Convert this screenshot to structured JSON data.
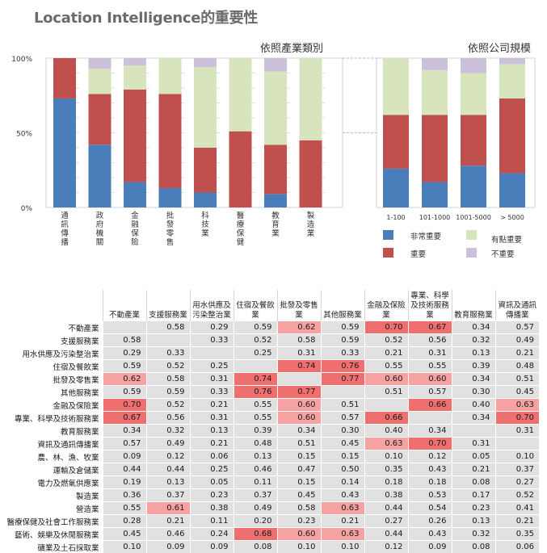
{
  "title": "Location Intelligence的重要性",
  "chart_data": [
    {
      "type": "bar",
      "stacked": true,
      "title": "依照產業類別",
      "categories": [
        "通訊傳播",
        "政府機關",
        "金融保險",
        "批發零售",
        "科技業",
        "醫療保健",
        "教育業",
        "製造業"
      ],
      "yticks": [
        "0%",
        "50%",
        "100%"
      ],
      "ylim": [
        0,
        100
      ],
      "series": [
        {
          "name": "非常重要",
          "color": "#4a7ebb",
          "values": [
            73,
            42,
            17,
            13,
            10,
            0,
            9,
            0
          ]
        },
        {
          "name": "重要",
          "color": "#c0504d",
          "values": [
            27,
            34,
            62,
            63,
            30,
            51,
            33,
            45
          ]
        },
        {
          "name": "有點重要",
          "color": "#d7e4bd",
          "values": [
            0,
            17,
            16,
            24,
            54,
            49,
            49,
            55
          ]
        },
        {
          "name": "不重要",
          "color": "#ccc1da",
          "values": [
            0,
            7,
            5,
            0,
            6,
            0,
            9,
            0
          ]
        }
      ]
    },
    {
      "type": "bar",
      "stacked": true,
      "title": "依照公司規模",
      "categories": [
        "1-100",
        "101-1000",
        "1001-5000",
        "> 5000"
      ],
      "ylim": [
        0,
        100
      ],
      "series": [
        {
          "name": "非常重要",
          "color": "#4a7ebb",
          "values": [
            26,
            17,
            28,
            23
          ]
        },
        {
          "name": "重要",
          "color": "#c0504d",
          "values": [
            36,
            45,
            34,
            50
          ]
        },
        {
          "name": "有點重要",
          "color": "#d7e4bd",
          "values": [
            38,
            30,
            28,
            23
          ]
        },
        {
          "name": "不重要",
          "color": "#ccc1da",
          "values": [
            0,
            8,
            10,
            4
          ]
        }
      ]
    },
    {
      "type": "heatmap",
      "columns": [
        "不動產業",
        "支援服務業",
        "用水供應及污染整治業",
        "住宿及餐飲業",
        "批發及零售業",
        "其他服務業",
        "金融及保險業",
        "專業、科學及技術服務業",
        "教育服務業",
        "資訊及通訊傳播業"
      ],
      "rows": [
        {
          "label": "不動產業",
          "values": [
            null,
            "0.58",
            "0.29",
            "0.59",
            "0.62",
            "0.59",
            "0.70",
            "0.67",
            "0.34",
            "0.57"
          ]
        },
        {
          "label": "支援服務業",
          "values": [
            "0.58",
            null,
            "0.33",
            "0.52",
            "0.58",
            "0.59",
            "0.52",
            "0.56",
            "0.32",
            "0.49"
          ]
        },
        {
          "label": "用水供應及污染整治業",
          "values": [
            "0.29",
            "0.33",
            null,
            "0.25",
            "0.31",
            "0.33",
            "0.21",
            "0.31",
            "0.13",
            "0.21"
          ]
        },
        {
          "label": "住宿及餐飲業",
          "values": [
            "0.59",
            "0.52",
            "0.25",
            null,
            "0.74",
            "0.76",
            "0.55",
            "0.55",
            "0.39",
            "0.48"
          ]
        },
        {
          "label": "批發及零售業",
          "values": [
            "0.62",
            "0.58",
            "0.31",
            "0.74",
            null,
            "0.77",
            "0.60",
            "0.60",
            "0.34",
            "0.51"
          ]
        },
        {
          "label": "其他服務業",
          "values": [
            "0.59",
            "0.59",
            "0.33",
            "0.76",
            "0.77",
            null,
            "0.51",
            "0.57",
            "0.30",
            "0.45"
          ]
        },
        {
          "label": "金融及保險業",
          "values": [
            "0.70",
            "0.52",
            "0.21",
            "0.55",
            "0.60",
            "0.51",
            null,
            "0.66",
            "0.40",
            "0.63"
          ]
        },
        {
          "label": "專業、科學及技術服務業",
          "values": [
            "0.67",
            "0.56",
            "0.31",
            "0.55",
            "0.60",
            "0.57",
            "0.66",
            null,
            "0.34",
            "0.70"
          ]
        },
        {
          "label": "教育服務業",
          "values": [
            "0.34",
            "0.32",
            "0.13",
            "0.39",
            "0.34",
            "0.30",
            "0.40",
            "0.34",
            null,
            "0.31"
          ]
        },
        {
          "label": "資訊及通訊傳播業",
          "values": [
            "0.57",
            "0.49",
            "0.21",
            "0.48",
            "0.51",
            "0.45",
            "0.63",
            "0.70",
            "0.31",
            null
          ]
        },
        {
          "label": "農、林、漁、牧業",
          "values": [
            "0.09",
            "0.12",
            "0.06",
            "0.13",
            "0.15",
            "0.15",
            "0.10",
            "0.12",
            "0.05",
            "0.10"
          ]
        },
        {
          "label": "運輸及倉儲業",
          "values": [
            "0.44",
            "0.44",
            "0.25",
            "0.46",
            "0.47",
            "0.50",
            "0.35",
            "0.43",
            "0.21",
            "0.37"
          ]
        },
        {
          "label": "電力及燃氣供應業",
          "values": [
            "0.19",
            "0.13",
            "0.05",
            "0.11",
            "0.15",
            "0.14",
            "0.18",
            "0.18",
            "0.08",
            "0.27"
          ]
        },
        {
          "label": "製造業",
          "values": [
            "0.36",
            "0.37",
            "0.23",
            "0.37",
            "0.45",
            "0.43",
            "0.38",
            "0.53",
            "0.17",
            "0.52"
          ]
        },
        {
          "label": "營造業",
          "values": [
            "0.55",
            "0.61",
            "0.38",
            "0.49",
            "0.58",
            "0.63",
            "0.44",
            "0.54",
            "0.23",
            "0.41"
          ]
        },
        {
          "label": "醫療保健及社會工作服務業",
          "values": [
            "0.28",
            "0.21",
            "0.11",
            "0.20",
            "0.23",
            "0.21",
            "0.27",
            "0.26",
            "0.13",
            "0.21"
          ]
        },
        {
          "label": "藝術、娛樂及休閒服務業",
          "values": [
            "0.45",
            "0.46",
            "0.24",
            "0.68",
            "0.60",
            "0.63",
            "0.44",
            "0.43",
            "0.32",
            "0.35"
          ]
        },
        {
          "label": "礦業及土石採取業",
          "values": [
            "0.10",
            "0.09",
            "0.09",
            "0.08",
            "0.10",
            "0.10",
            "0.12",
            "0.09",
            "0.08",
            "0.06"
          ]
        }
      ]
    }
  ]
}
